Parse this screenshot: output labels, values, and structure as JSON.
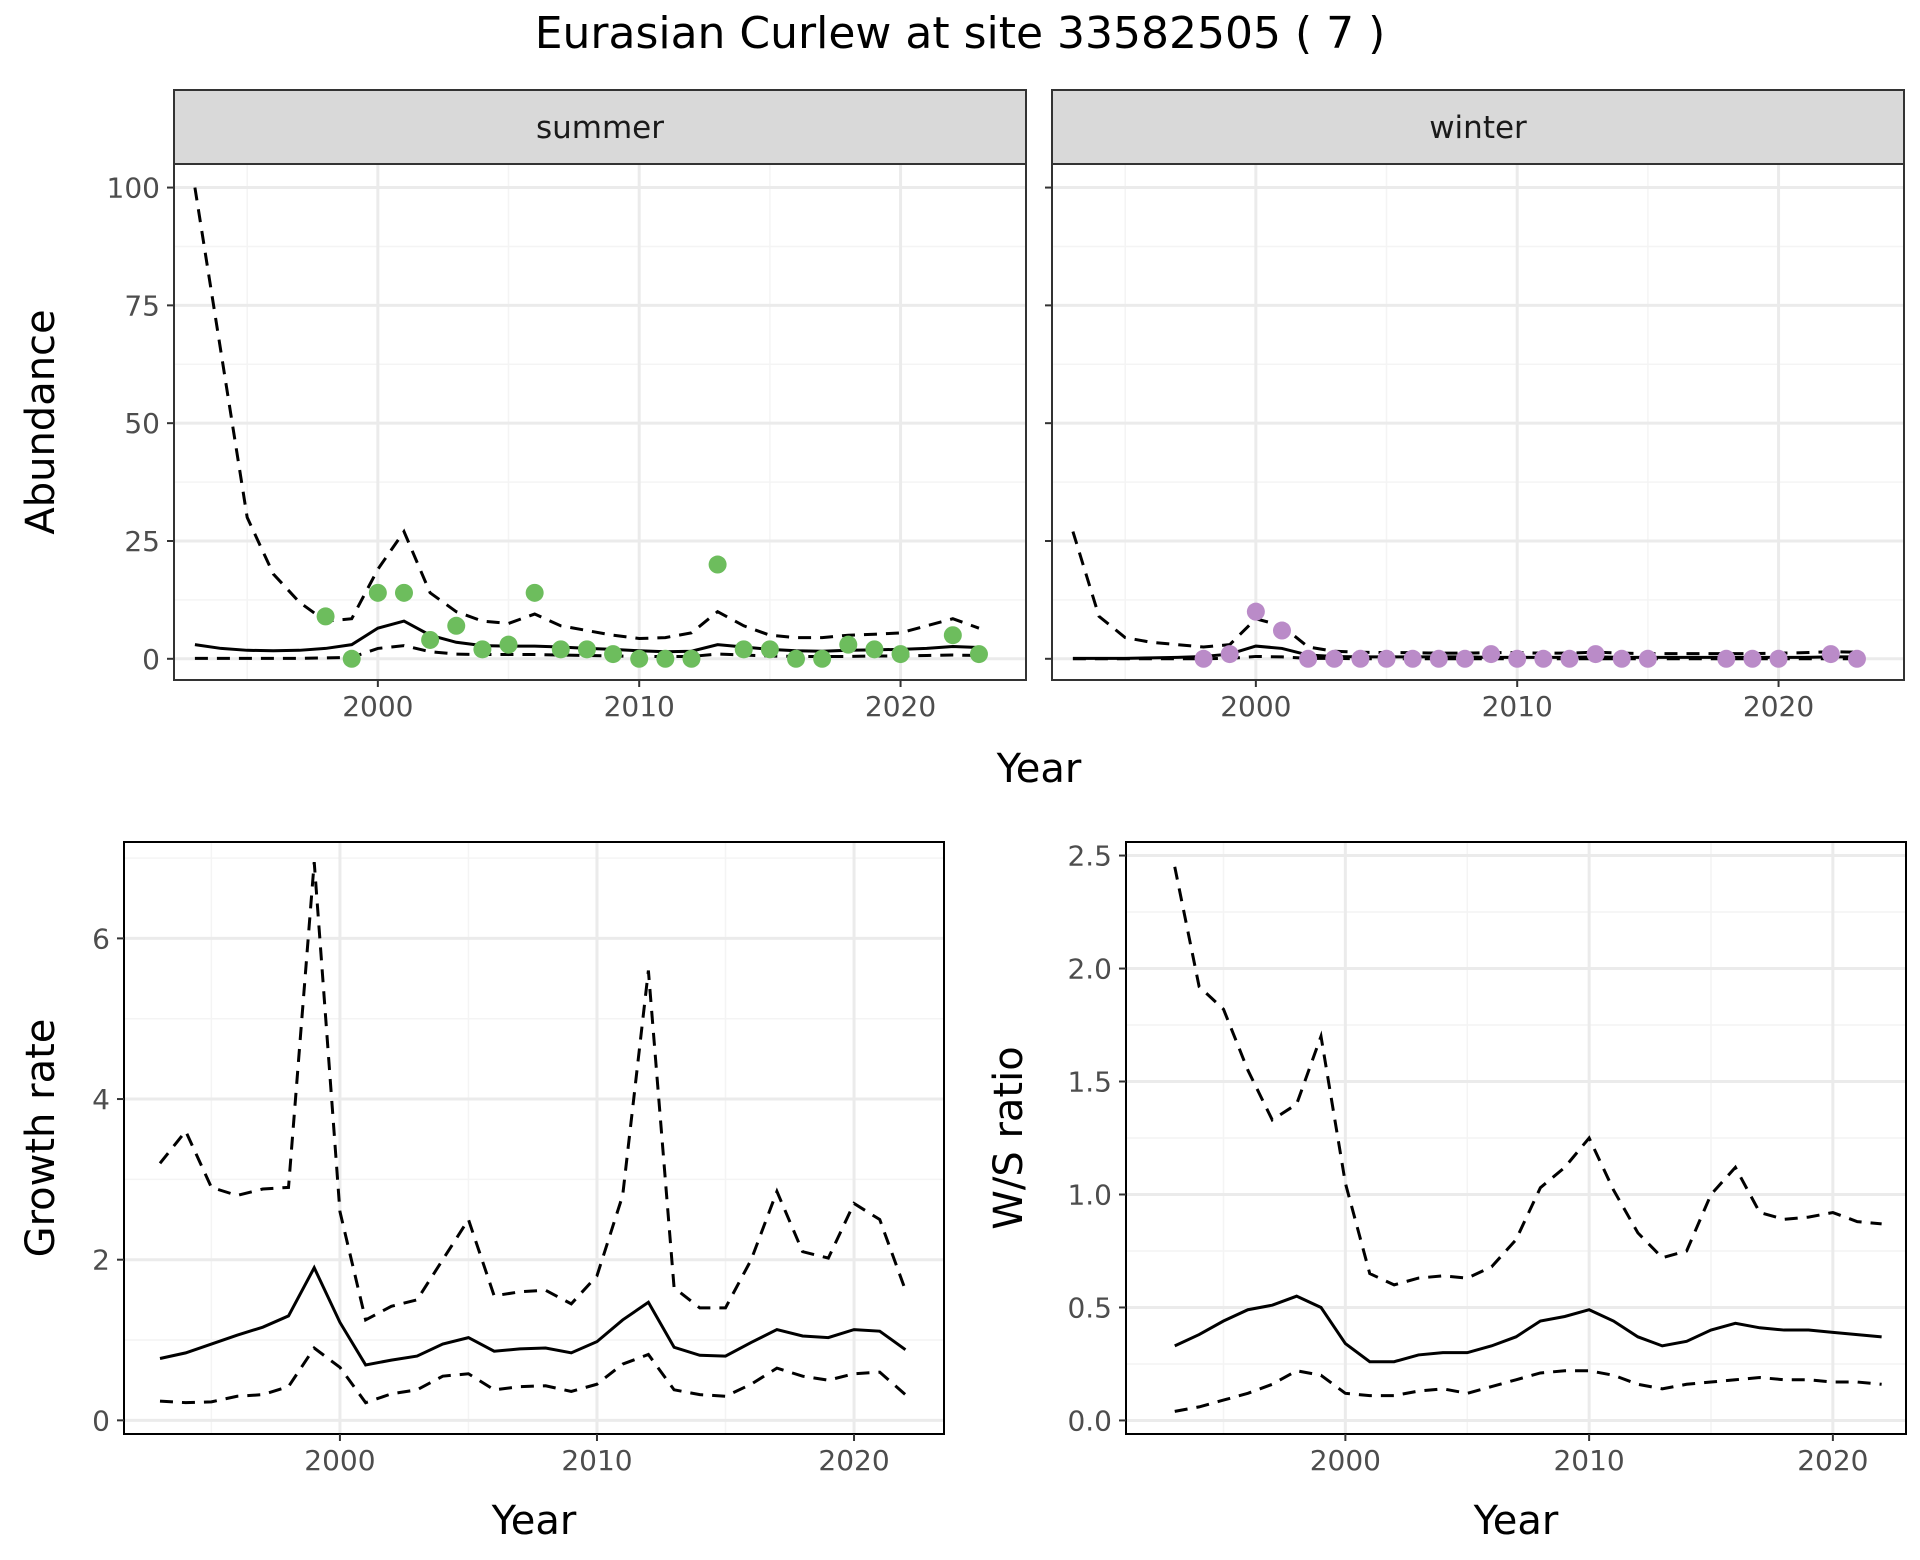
{
  "title": "Eurasian Curlew at site 33582505 ( 7 )",
  "colors": {
    "summer_points": "#6DBD5D",
    "winter_points": "#BA8BC8",
    "lines": "#000000",
    "strip_fill": "#D9D9D9",
    "grid_major": "#EBEBEB",
    "grid_minor": "#F4F4F4",
    "panel_border": "#333333"
  },
  "chart_data": [
    {
      "id": "abundance",
      "type": "line",
      "facet_by": "season",
      "xlabel": "Year",
      "ylabel": "Abundance",
      "xlim": [
        1992.2,
        2024.8
      ],
      "ylim": [
        -4.5,
        105
      ],
      "xticks": [
        2000,
        2010,
        2020
      ],
      "yticks": [
        0,
        25,
        50,
        75,
        100
      ],
      "grid": true,
      "facets": [
        {
          "strip": "summer",
          "point_color": "#6DBD5D",
          "years": [
            1993,
            1994,
            1995,
            1996,
            1997,
            1998,
            1999,
            2000,
            2001,
            2002,
            2003,
            2004,
            2005,
            2006,
            2007,
            2008,
            2009,
            2010,
            2011,
            2012,
            2013,
            2014,
            2015,
            2016,
            2017,
            2018,
            2019,
            2020,
            2021,
            2022,
            2023
          ],
          "mean": [
            3.0,
            2.2,
            1.8,
            1.7,
            1.8,
            2.2,
            3.0,
            6.5,
            8.0,
            5.0,
            3.5,
            2.8,
            2.7,
            2.7,
            2.5,
            2.2,
            2.0,
            1.7,
            1.5,
            1.6,
            3.0,
            2.5,
            2.0,
            1.7,
            1.6,
            1.8,
            1.9,
            2.0,
            2.2,
            2.6,
            2.4
          ],
          "upper": [
            100,
            65,
            30,
            18,
            12,
            8,
            8.5,
            19,
            27,
            14,
            10,
            8,
            7.5,
            9.5,
            7,
            6,
            5,
            4.3,
            4.5,
            5.5,
            10,
            7,
            5,
            4.5,
            4.5,
            5,
            5.2,
            5.5,
            7,
            8.5,
            6.5
          ],
          "lower": [
            0.1,
            0.1,
            0.1,
            0.1,
            0.1,
            0.2,
            0.3,
            2.2,
            2.8,
            1.5,
            1.0,
            0.9,
            0.9,
            0.9,
            0.8,
            0.7,
            0.6,
            0.5,
            0.5,
            0.5,
            1.0,
            0.8,
            0.6,
            0.5,
            0.5,
            0.5,
            0.6,
            0.6,
            0.7,
            0.8,
            0.7
          ],
          "observed": [
            {
              "year": 1998,
              "value": 9
            },
            {
              "year": 1999,
              "value": 0
            },
            {
              "year": 2000,
              "value": 14
            },
            {
              "year": 2001,
              "value": 14
            },
            {
              "year": 2002,
              "value": 4
            },
            {
              "year": 2003,
              "value": 7
            },
            {
              "year": 2004,
              "value": 2
            },
            {
              "year": 2005,
              "value": 3
            },
            {
              "year": 2006,
              "value": 14
            },
            {
              "year": 2007,
              "value": 2
            },
            {
              "year": 2008,
              "value": 2
            },
            {
              "year": 2009,
              "value": 1
            },
            {
              "year": 2010,
              "value": 0
            },
            {
              "year": 2011,
              "value": 0
            },
            {
              "year": 2012,
              "value": 0
            },
            {
              "year": 2013,
              "value": 20
            },
            {
              "year": 2014,
              "value": 2
            },
            {
              "year": 2015,
              "value": 2
            },
            {
              "year": 2016,
              "value": 0
            },
            {
              "year": 2017,
              "value": 0
            },
            {
              "year": 2018,
              "value": 3
            },
            {
              "year": 2019,
              "value": 2
            },
            {
              "year": 2020,
              "value": 1
            },
            {
              "year": 2022,
              "value": 5
            },
            {
              "year": 2023,
              "value": 1
            }
          ]
        },
        {
          "strip": "winter",
          "point_color": "#BA8BC8",
          "years": [
            1993,
            1994,
            1995,
            1996,
            1997,
            1998,
            1999,
            2000,
            2001,
            2002,
            2003,
            2004,
            2005,
            2006,
            2007,
            2008,
            2009,
            2010,
            2011,
            2012,
            2013,
            2014,
            2015,
            2016,
            2017,
            2018,
            2019,
            2020,
            2021,
            2022,
            2023
          ],
          "mean": [
            0.1,
            0.1,
            0.1,
            0.2,
            0.3,
            0.5,
            1.0,
            2.7,
            2.2,
            0.8,
            0.5,
            0.4,
            0.4,
            0.4,
            0.4,
            0.4,
            0.3,
            0.3,
            0.3,
            0.3,
            0.4,
            0.3,
            0.3,
            0.3,
            0.3,
            0.3,
            0.3,
            0.3,
            0.3,
            0.4,
            0.4
          ],
          "upper": [
            27,
            9,
            4.5,
            3.5,
            3,
            2.5,
            3,
            8.5,
            7,
            2.5,
            1.6,
            1.4,
            1.3,
            1.3,
            1.2,
            1.2,
            1.3,
            1.3,
            1.2,
            1.2,
            1.4,
            1.2,
            1.1,
            1.1,
            1.1,
            1.1,
            1.1,
            1.2,
            1.3,
            1.5,
            1.4
          ],
          "lower": [
            0.0,
            0.0,
            0.0,
            0.0,
            0.0,
            0.0,
            0.1,
            0.5,
            0.4,
            0.1,
            0.1,
            0.0,
            0.0,
            0.0,
            0.0,
            0.0,
            0.0,
            0.0,
            0.0,
            0.0,
            0.0,
            0.0,
            0.0,
            0.0,
            0.0,
            0.0,
            0.0,
            0.0,
            0.0,
            0.0,
            0.0
          ],
          "observed": [
            {
              "year": 1998,
              "value": 0
            },
            {
              "year": 1999,
              "value": 1
            },
            {
              "year": 2000,
              "value": 10
            },
            {
              "year": 2001,
              "value": 6
            },
            {
              "year": 2002,
              "value": 0
            },
            {
              "year": 2003,
              "value": 0
            },
            {
              "year": 2004,
              "value": 0
            },
            {
              "year": 2005,
              "value": 0
            },
            {
              "year": 2006,
              "value": 0
            },
            {
              "year": 2007,
              "value": 0
            },
            {
              "year": 2008,
              "value": 0
            },
            {
              "year": 2009,
              "value": 1
            },
            {
              "year": 2010,
              "value": 0
            },
            {
              "year": 2011,
              "value": 0
            },
            {
              "year": 2012,
              "value": 0
            },
            {
              "year": 2013,
              "value": 1
            },
            {
              "year": 2014,
              "value": 0
            },
            {
              "year": 2015,
              "value": 0
            },
            {
              "year": 2018,
              "value": 0
            },
            {
              "year": 2019,
              "value": 0
            },
            {
              "year": 2020,
              "value": 0
            },
            {
              "year": 2022,
              "value": 1
            },
            {
              "year": 2023,
              "value": 0
            }
          ]
        }
      ]
    },
    {
      "id": "growth",
      "type": "line",
      "xlabel": "Year",
      "ylabel": "Growth rate",
      "xlim": [
        1991.6,
        2023.5
      ],
      "ylim": [
        -0.17,
        7.2
      ],
      "xticks": [
        2000,
        2010,
        2020
      ],
      "yticks": [
        0,
        2,
        4,
        6
      ],
      "grid": true,
      "years": [
        1993,
        1994,
        1995,
        1996,
        1997,
        1998,
        1999,
        2000,
        2001,
        2002,
        2003,
        2004,
        2005,
        2006,
        2007,
        2008,
        2009,
        2010,
        2011,
        2012,
        2013,
        2014,
        2015,
        2016,
        2017,
        2018,
        2019,
        2020,
        2021,
        2022
      ],
      "mean": [
        0.77,
        0.84,
        0.95,
        1.06,
        1.16,
        1.3,
        1.9,
        1.22,
        0.69,
        0.75,
        0.8,
        0.95,
        1.03,
        0.86,
        0.89,
        0.9,
        0.84,
        0.98,
        1.25,
        1.47,
        0.91,
        0.81,
        0.8,
        0.97,
        1.13,
        1.05,
        1.03,
        1.13,
        1.11,
        0.88
      ],
      "upper": [
        3.2,
        3.6,
        2.9,
        2.8,
        2.88,
        2.9,
        6.95,
        2.6,
        1.25,
        1.42,
        1.5,
        2.0,
        2.5,
        1.55,
        1.6,
        1.62,
        1.45,
        1.8,
        2.8,
        5.6,
        1.65,
        1.4,
        1.4,
        2.0,
        2.85,
        2.1,
        2.02,
        2.7,
        2.5,
        1.62
      ],
      "lower": [
        0.24,
        0.22,
        0.23,
        0.3,
        0.32,
        0.42,
        0.9,
        0.66,
        0.22,
        0.33,
        0.38,
        0.55,
        0.58,
        0.38,
        0.42,
        0.43,
        0.36,
        0.45,
        0.7,
        0.82,
        0.38,
        0.32,
        0.3,
        0.45,
        0.65,
        0.55,
        0.5,
        0.58,
        0.6,
        0.32
      ]
    },
    {
      "id": "ratio",
      "type": "line",
      "xlabel": "Year",
      "ylabel": "W/S ratio",
      "xlim": [
        1991.0,
        2023.0
      ],
      "ylim": [
        -0.06,
        2.56
      ],
      "xticks": [
        2000,
        2010,
        2020
      ],
      "yticks": [
        0.0,
        0.5,
        1.0,
        1.5,
        2.0,
        2.5
      ],
      "ytick_labels": [
        "0.0",
        "0.5",
        "1.0",
        "1.5",
        "2.0",
        "2.5"
      ],
      "grid": true,
      "years": [
        1993,
        1994,
        1995,
        1996,
        1997,
        1998,
        1999,
        2000,
        2001,
        2002,
        2003,
        2004,
        2005,
        2006,
        2007,
        2008,
        2009,
        2010,
        2011,
        2012,
        2013,
        2014,
        2015,
        2016,
        2017,
        2018,
        2019,
        2020,
        2021,
        2022
      ],
      "mean": [
        0.33,
        0.38,
        0.44,
        0.49,
        0.51,
        0.55,
        0.5,
        0.34,
        0.26,
        0.26,
        0.29,
        0.3,
        0.3,
        0.33,
        0.37,
        0.44,
        0.46,
        0.49,
        0.44,
        0.37,
        0.33,
        0.35,
        0.4,
        0.43,
        0.41,
        0.4,
        0.4,
        0.39,
        0.38,
        0.37
      ],
      "upper": [
        2.45,
        1.92,
        1.82,
        1.55,
        1.33,
        1.4,
        1.7,
        1.05,
        0.65,
        0.6,
        0.63,
        0.64,
        0.63,
        0.68,
        0.8,
        1.03,
        1.12,
        1.25,
        1.02,
        0.83,
        0.72,
        0.75,
        1.0,
        1.12,
        0.92,
        0.89,
        0.9,
        0.92,
        0.88,
        0.87
      ],
      "lower": [
        0.04,
        0.06,
        0.09,
        0.12,
        0.16,
        0.22,
        0.2,
        0.12,
        0.11,
        0.11,
        0.13,
        0.14,
        0.12,
        0.15,
        0.18,
        0.21,
        0.22,
        0.22,
        0.2,
        0.16,
        0.14,
        0.16,
        0.17,
        0.18,
        0.19,
        0.18,
        0.18,
        0.17,
        0.17,
        0.16
      ]
    }
  ]
}
